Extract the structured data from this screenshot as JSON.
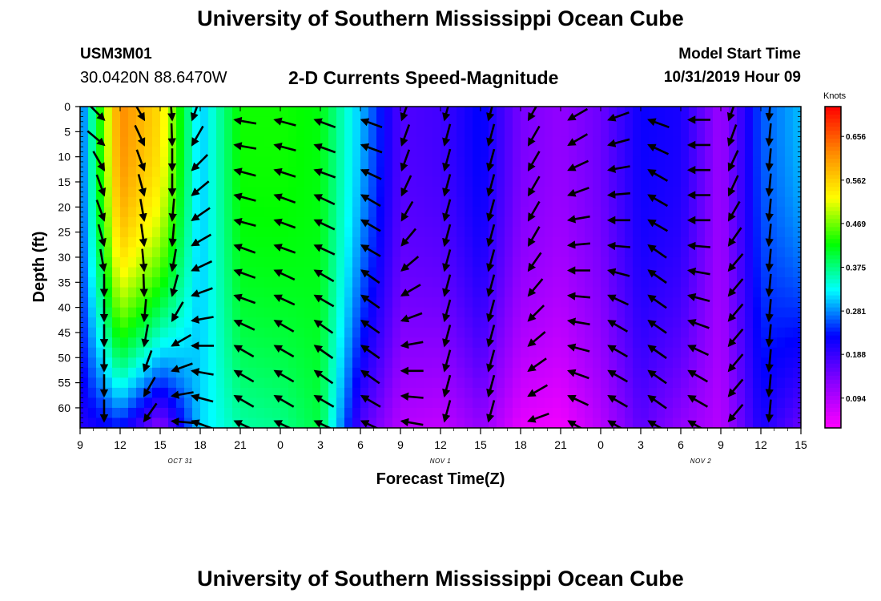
{
  "header": {
    "title": "University of Southern Mississippi Ocean Cube",
    "station_id": "USM3M01",
    "coordinates": "30.0420N 88.6470W",
    "subtitle": "2-D Currents Speed-Magnitude",
    "model_start_label": "Model Start Time",
    "model_start_value": "10/31/2019 Hour 09"
  },
  "footer": {
    "title": "University of Southern Mississippi Ocean Cube"
  },
  "chart_data": {
    "type": "heatmap",
    "title": "2-D Currents Speed-Magnitude",
    "xlabel": "Forecast Time(Z)",
    "ylabel": "Depth (ft)",
    "x_hours_since_start": [
      0,
      3,
      6,
      9,
      12,
      15,
      18,
      21,
      24,
      27,
      30,
      33,
      36,
      39,
      42,
      45,
      48,
      51,
      54
    ],
    "x_tick_labels": [
      "9",
      "12",
      "15",
      "18",
      "21",
      "0",
      "3",
      "6",
      "9",
      "12",
      "15",
      "18",
      "21",
      "0",
      "3",
      "6",
      "9",
      "12",
      "15"
    ],
    "date_labels": [
      {
        "label": "OCT 31",
        "at_hours": 7.5
      },
      {
        "label": "NOV 1",
        "at_hours": 27
      },
      {
        "label": "NOV 2",
        "at_hours": 46.5
      }
    ],
    "y_ticks": [
      0,
      5,
      10,
      15,
      20,
      25,
      30,
      35,
      40,
      45,
      50,
      55,
      60
    ],
    "ylim": [
      0,
      64
    ],
    "y_inverted": true,
    "colorbar": {
      "unit": "Knots",
      "ticks": [
        0.656,
        0.562,
        0.469,
        0.375,
        0.281,
        0.188,
        0.094
      ],
      "range": [
        0.03,
        0.72
      ],
      "colors": [
        "#ff00ff",
        "#8800ff",
        "#0000ff",
        "#00ffff",
        "#00ff00",
        "#ffff00",
        "#ff8800",
        "#ff0000"
      ]
    },
    "speed_profiles_surface": [
      0.22,
      0.66,
      0.47,
      0.44,
      0.44,
      0.44,
      0.3,
      0.2,
      0.17,
      0.14,
      0.2,
      0.17,
      0.25,
      0.23,
      0.21,
      0.17,
      0.2,
      0.18,
      0.28,
      0.2
    ],
    "speed_profiles_bottom": [
      0.23,
      0.14,
      0.12,
      0.28,
      0.33,
      0.33,
      0.38,
      0.14,
      0.1,
      0.07,
      0.12,
      0.07,
      0.04,
      0.08,
      0.14,
      0.12,
      0.09,
      0.19,
      0.28,
      0.15
    ],
    "speed_columns_hours": [
      0,
      3,
      6,
      9,
      12,
      15,
      18,
      21,
      24,
      27,
      30,
      33,
      36,
      39,
      42,
      45,
      48,
      51,
      54
    ],
    "speed_surface": [
      0.25,
      0.62,
      0.55,
      0.3,
      0.43,
      0.43,
      0.42,
      0.3,
      0.17,
      0.18,
      0.23,
      0.14,
      0.12,
      0.15,
      0.22,
      0.21,
      0.11,
      0.26,
      0.3
    ],
    "speed_bottom": [
      0.2,
      0.23,
      0.12,
      0.31,
      0.36,
      0.37,
      0.4,
      0.17,
      0.09,
      0.08,
      0.12,
      0.05,
      0.04,
      0.09,
      0.16,
      0.12,
      0.09,
      0.21,
      0.15
    ],
    "vector_columns_hours": [
      1.2,
      4.2,
      6.3,
      7.8,
      11,
      14,
      17,
      20.5,
      23.5,
      26.7,
      30,
      33,
      36,
      39,
      42,
      45,
      48,
      51
    ],
    "vector_depths": [
      2,
      7,
      12,
      17,
      22,
      27,
      32,
      37,
      42,
      47,
      52,
      57,
      62
    ],
    "vector_directions_deg": [
      [
        135,
        150,
        175,
        200,
        280,
        285,
        290,
        290,
        200,
        195,
        195,
        210,
        240,
        250,
        290,
        270,
        200,
        185
      ],
      [
        130,
        155,
        178,
        210,
        280,
        285,
        290,
        290,
        200,
        195,
        195,
        210,
        240,
        255,
        295,
        270,
        200,
        185
      ],
      [
        150,
        160,
        180,
        225,
        285,
        288,
        290,
        295,
        200,
        195,
        195,
        210,
        245,
        260,
        300,
        270,
        205,
        185
      ],
      [
        160,
        165,
        180,
        230,
        285,
        290,
        295,
        300,
        205,
        195,
        195,
        210,
        250,
        265,
        300,
        270,
        205,
        185
      ],
      [
        160,
        170,
        185,
        235,
        285,
        290,
        295,
        300,
        210,
        195,
        195,
        210,
        260,
        270,
        300,
        270,
        210,
        185
      ],
      [
        165,
        172,
        185,
        240,
        290,
        290,
        295,
        300,
        220,
        195,
        195,
        210,
        265,
        275,
        305,
        275,
        215,
        185
      ],
      [
        170,
        175,
        190,
        245,
        290,
        295,
        300,
        305,
        230,
        195,
        195,
        215,
        270,
        285,
        305,
        280,
        220,
        185
      ],
      [
        180,
        178,
        195,
        250,
        290,
        295,
        300,
        305,
        240,
        195,
        195,
        220,
        275,
        295,
        305,
        285,
        220,
        185
      ],
      [
        180,
        185,
        210,
        260,
        295,
        300,
        305,
        305,
        250,
        195,
        195,
        225,
        280,
        300,
        305,
        290,
        220,
        185
      ],
      [
        180,
        190,
        240,
        270,
        300,
        300,
        305,
        305,
        260,
        195,
        195,
        230,
        285,
        300,
        305,
        295,
        220,
        185
      ],
      [
        180,
        200,
        250,
        280,
        300,
        300,
        305,
        305,
        270,
        195,
        195,
        235,
        290,
        300,
        305,
        300,
        220,
        185
      ],
      [
        180,
        210,
        260,
        285,
        300,
        300,
        300,
        300,
        275,
        195,
        195,
        240,
        295,
        300,
        305,
        300,
        220,
        185
      ],
      [
        180,
        215,
        275,
        290,
        295,
        295,
        295,
        295,
        280,
        195,
        195,
        250,
        300,
        300,
        300,
        300,
        220,
        185
      ]
    ],
    "grid": false
  }
}
